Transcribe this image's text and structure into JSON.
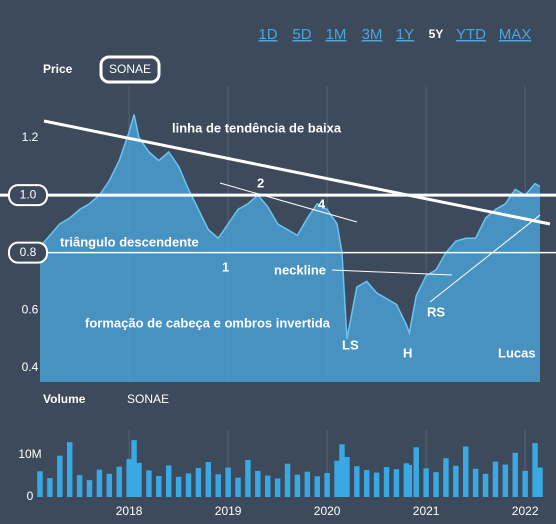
{
  "range_buttons": [
    "1D",
    "5D",
    "1M",
    "3M",
    "1Y",
    "5Y",
    "YTD",
    "MAX"
  ],
  "range_selected": 5,
  "chart_data": [
    {
      "type": "area",
      "title": "Price",
      "ticker": "SONAE",
      "color": "#4a9fd4",
      "x": [
        2017.1,
        2017.2,
        2017.3,
        2017.4,
        2017.5,
        2017.6,
        2017.7,
        2017.8,
        2017.9,
        2018.0,
        2018.05,
        2018.1,
        2018.2,
        2018.3,
        2018.4,
        2018.5,
        2018.6,
        2018.7,
        2018.8,
        2018.9,
        2019.0,
        2019.1,
        2019.2,
        2019.3,
        2019.4,
        2019.5,
        2019.6,
        2019.7,
        2019.8,
        2019.9,
        2020.0,
        2020.1,
        2020.15,
        2020.2,
        2020.3,
        2020.4,
        2020.5,
        2020.6,
        2020.7,
        2020.8,
        2020.83,
        2020.9,
        2021.0,
        2021.1,
        2021.2,
        2021.3,
        2021.4,
        2021.5,
        2021.6,
        2021.7,
        2021.8,
        2021.9,
        2022.0,
        2022.1,
        2022.15
      ],
      "values": [
        0.82,
        0.86,
        0.9,
        0.92,
        0.95,
        0.97,
        1.0,
        1.05,
        1.12,
        1.22,
        1.28,
        1.2,
        1.15,
        1.12,
        1.15,
        1.1,
        1.02,
        0.95,
        0.88,
        0.85,
        0.9,
        0.95,
        0.97,
        1.0,
        0.96,
        0.9,
        0.88,
        0.86,
        0.92,
        0.97,
        0.95,
        0.9,
        0.8,
        0.5,
        0.68,
        0.7,
        0.66,
        0.64,
        0.62,
        0.55,
        0.52,
        0.65,
        0.72,
        0.74,
        0.8,
        0.84,
        0.85,
        0.85,
        0.92,
        0.95,
        0.97,
        1.02,
        1.0,
        1.04,
        1.03
      ],
      "xlim": [
        2017.1,
        2022.15
      ],
      "xticks": [
        2018,
        2019,
        2020,
        2021,
        2022
      ],
      "ylim": [
        0.35,
        1.35
      ],
      "yticks": [
        {
          "value": 0.4,
          "label": "0.4"
        },
        {
          "value": 0.6,
          "label": "0.6"
        },
        {
          "value": 0.8,
          "label": "0.8"
        },
        {
          "value": 1.0,
          "label": "1.0"
        },
        {
          "value": 1.2,
          "label": "1.2"
        }
      ],
      "hlines": [
        1.0,
        0.8
      ],
      "annotations": [
        "linha de tendência de baixa",
        "2",
        "4",
        "triângulo descendente",
        "1",
        "neckline",
        "formação de cabeça e ombros invertida",
        "LS",
        "H",
        "RS",
        "Lucas"
      ]
    },
    {
      "type": "bar",
      "title": "Volume",
      "ticker": "SONAE",
      "color": "#3aa8e2",
      "x": [
        2017.1,
        2017.2,
        2017.3,
        2017.4,
        2017.5,
        2017.6,
        2017.7,
        2017.8,
        2017.9,
        2018.0,
        2018.05,
        2018.1,
        2018.2,
        2018.3,
        2018.4,
        2018.5,
        2018.6,
        2018.7,
        2018.8,
        2018.9,
        2019.0,
        2019.1,
        2019.2,
        2019.3,
        2019.4,
        2019.5,
        2019.6,
        2019.7,
        2019.8,
        2019.9,
        2020.0,
        2020.1,
        2020.15,
        2020.2,
        2020.3,
        2020.4,
        2020.5,
        2020.6,
        2020.7,
        2020.8,
        2020.83,
        2020.9,
        2021.0,
        2021.1,
        2021.2,
        2021.3,
        2021.4,
        2021.5,
        2021.6,
        2021.7,
        2021.8,
        2021.9,
        2022.0,
        2022.1,
        2022.15
      ],
      "values": [
        6100000,
        4500000,
        9800000,
        13000000,
        5200000,
        4000000,
        6500000,
        5500000,
        7200000,
        9000000,
        13500000,
        8100000,
        6300000,
        5000000,
        7500000,
        4800000,
        5600000,
        6900000,
        8300000,
        5400000,
        7000000,
        4600000,
        8800000,
        6200000,
        5100000,
        4400000,
        7900000,
        5300000,
        6000000,
        4900000,
        5700000,
        8600000,
        12500000,
        9500000,
        7300000,
        6400000,
        5800000,
        7100000,
        6600000,
        8000000,
        7600000,
        11800000,
        6800000,
        5900000,
        9200000,
        7400000,
        12000000,
        6700000,
        5500000,
        8400000,
        7700000,
        10500000,
        6200000,
        12800000,
        7000000
      ],
      "xlim": [
        2017.1,
        2022.15
      ],
      "xticks": [
        2018,
        2019,
        2020,
        2021,
        2022
      ],
      "ylim": [
        0,
        14000000
      ],
      "yticks": [
        0,
        {
          "value": 10000000,
          "label": "10M"
        }
      ]
    }
  ]
}
